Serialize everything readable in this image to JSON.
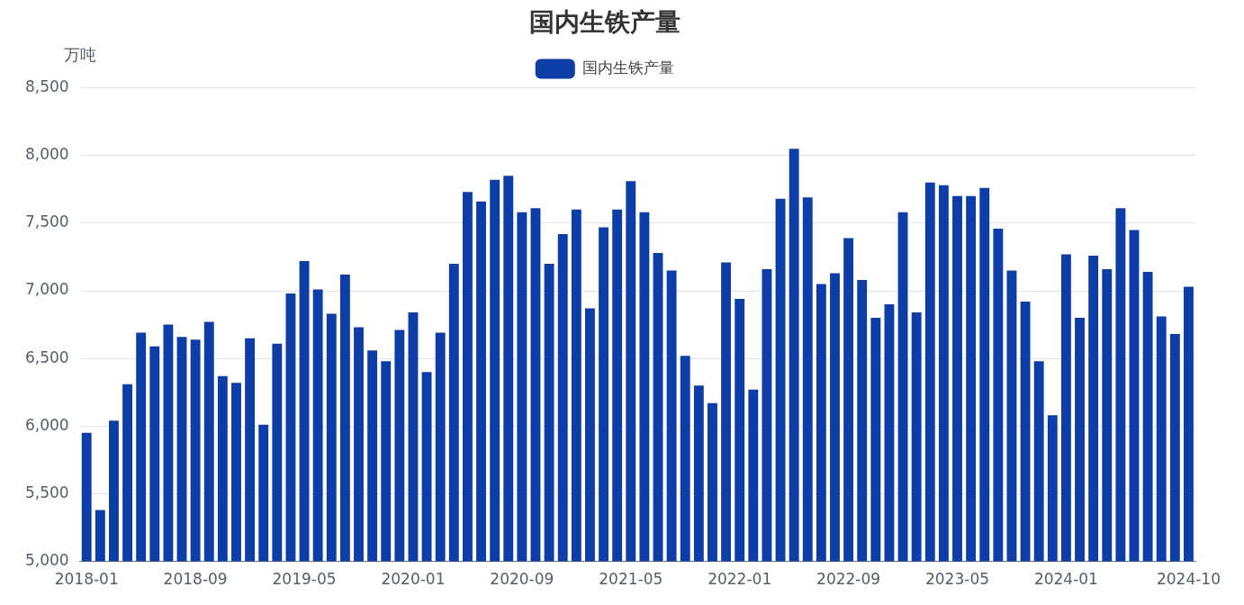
{
  "chart_data": {
    "type": "bar",
    "title": "国内生铁产量",
    "ylabel": "万吨",
    "categories": [
      "2018-01",
      null,
      null,
      null,
      null,
      null,
      null,
      null,
      "2018-09",
      null,
      null,
      null,
      null,
      null,
      null,
      null,
      "2019-05",
      null,
      null,
      null,
      null,
      null,
      null,
      null,
      "2020-01",
      null,
      null,
      null,
      null,
      null,
      null,
      null,
      "2020-09",
      null,
      null,
      null,
      null,
      null,
      null,
      null,
      "2021-05",
      null,
      null,
      null,
      null,
      null,
      null,
      null,
      "2022-01",
      null,
      null,
      null,
      null,
      null,
      null,
      null,
      "2022-09",
      null,
      null,
      null,
      null,
      null,
      null,
      null,
      "2023-05",
      null,
      null,
      null,
      null,
      null,
      null,
      null,
      "2024-01",
      null,
      null,
      null,
      null,
      null,
      null,
      null,
      null,
      "2024-10"
    ],
    "series": [
      {
        "name": "国内生铁产量",
        "color": "#0d3da6",
        "values": [
          5950,
          5380,
          6040,
          6310,
          6690,
          6590,
          6750,
          6660,
          6640,
          6770,
          6370,
          6320,
          6650,
          6010,
          6610,
          6980,
          7220,
          7010,
          6830,
          7120,
          6730,
          6560,
          6480,
          6710,
          6840,
          6400,
          6690,
          7200,
          7730,
          7660,
          7820,
          7850,
          7580,
          7610,
          7200,
          7420,
          7600,
          6870,
          7470,
          7600,
          7810,
          7580,
          7280,
          7150,
          6520,
          6300,
          6170,
          7210,
          6940,
          6270,
          7160,
          7680,
          8050,
          7690,
          7050,
          7130,
          7390,
          7080,
          6800,
          6900,
          7580,
          6840,
          7800,
          7780,
          7700,
          7700,
          7760,
          7460,
          7150,
          6920,
          6480,
          6080,
          7270,
          6800,
          7260,
          7160,
          7610,
          7450,
          7140,
          6810,
          6680,
          7030
        ]
      }
    ],
    "ylim": [
      5000,
      8500
    ],
    "yticks": [
      {
        "value": 5000,
        "label": "5,000"
      },
      {
        "value": 5500,
        "label": "5,500"
      },
      {
        "value": 6000,
        "label": "6,000"
      },
      {
        "value": 6500,
        "label": "6,500"
      },
      {
        "value": 7000,
        "label": "7,000"
      },
      {
        "value": 7500,
        "label": "7,500"
      },
      {
        "value": 8000,
        "label": "8,000"
      },
      {
        "value": 8500,
        "label": "8,500"
      }
    ],
    "grid": "y",
    "legend": "top"
  }
}
